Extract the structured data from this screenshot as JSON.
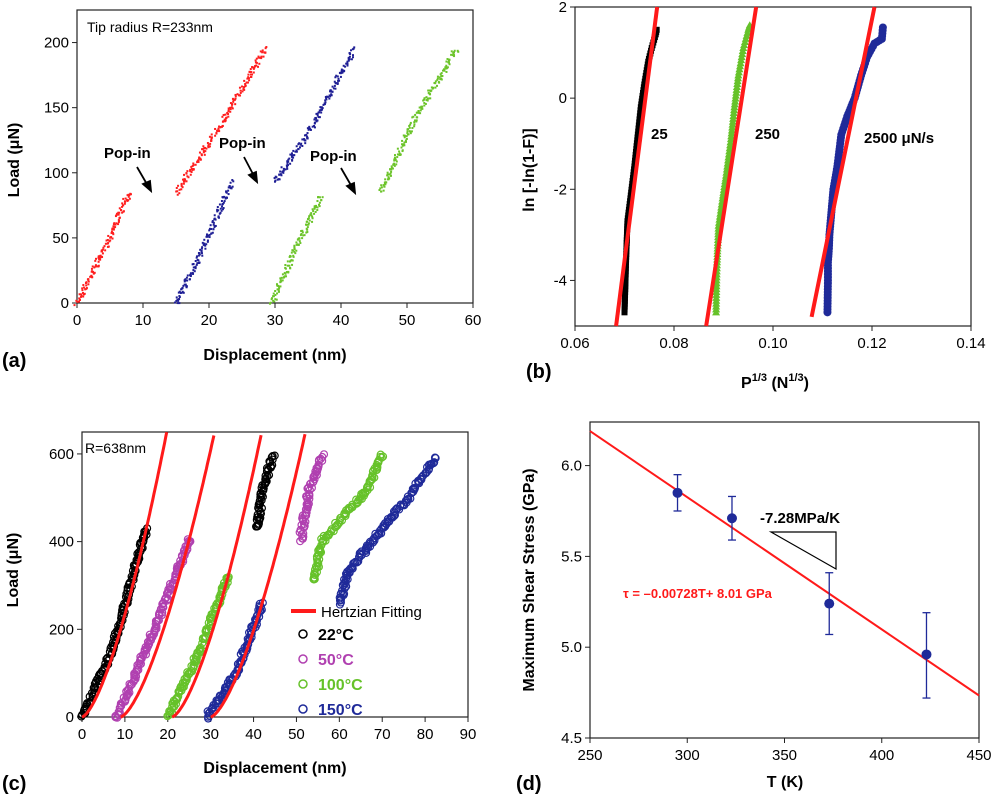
{
  "panel_labels": {
    "a": "(a)",
    "b": "(b)",
    "c": "(c)",
    "d": "(d)"
  },
  "chart_data": [
    {
      "id": "a",
      "type": "scatter",
      "xlabel": "Displacement (nm)",
      "ylabel": "Load (μN)",
      "xlim": [
        0,
        60
      ],
      "ylim": [
        0,
        225
      ],
      "xticks": [
        0,
        10,
        20,
        30,
        40,
        50,
        60
      ],
      "yticks": [
        0,
        50,
        100,
        150,
        200
      ],
      "grid": false,
      "annotations": {
        "tip": "Tip radius R=233nm",
        "popin": [
          "Pop-in",
          "Pop-in",
          "Pop-in"
        ]
      },
      "series": [
        {
          "color": "#ff1f1f",
          "segments": [
            [
              [
                0,
                0
              ],
              [
                4,
                40
              ],
              [
                8,
                85
              ]
            ],
            [
              [
                15,
                85
              ],
              [
                21,
                130
              ],
              [
                28.5,
                195
              ]
            ]
          ]
        },
        {
          "color": "#1f1f95",
          "segments": [
            [
              [
                15,
                0
              ],
              [
                19,
                40
              ],
              [
                23.5,
                93
              ]
            ],
            [
              [
                30,
                93
              ],
              [
                35,
                130
              ],
              [
                42,
                195
              ]
            ]
          ]
        },
        {
          "color": "#6cc42a",
          "segments": [
            [
              [
                29.5,
                0
              ],
              [
                33,
                40
              ],
              [
                37,
                82
              ]
            ],
            [
              [
                46,
                85
              ],
              [
                51,
                140
              ],
              [
                57.5,
                195
              ]
            ]
          ]
        }
      ]
    },
    {
      "id": "b",
      "type": "scatter",
      "xlabel": {
        "base": "P",
        "sup": "1/3",
        "unit": " (N",
        "unit_sup": "1/3",
        "close": ")"
      },
      "ylabel": "ln [-ln(1-F)]",
      "xlim": [
        0.06,
        0.14
      ],
      "ylim": [
        -5,
        2
      ],
      "xticks": [
        "0.06",
        "0.08",
        "0.10",
        "0.12",
        "0.14"
      ],
      "yticks": [
        "2",
        "0",
        "-2",
        "-4"
      ],
      "grid": false,
      "series": [
        {
          "name": "25",
          "marker": "square",
          "color": "#000000",
          "points": [
            [
              0.07,
              -4.7
            ],
            [
              0.0702,
              -4.0
            ],
            [
              0.0703,
              -3.6
            ],
            [
              0.0704,
              -3.3
            ],
            [
              0.0705,
              -3.0
            ],
            [
              0.0706,
              -2.7
            ],
            [
              0.0712,
              -2.2
            ],
            [
              0.072,
              -1.5
            ],
            [
              0.0727,
              -0.8
            ],
            [
              0.0733,
              -0.2
            ],
            [
              0.074,
              0.3
            ],
            [
              0.0748,
              0.8
            ],
            [
              0.0755,
              1.1
            ],
            [
              0.0763,
              1.4
            ],
            [
              0.0765,
              1.5
            ]
          ],
          "fit": [
            [
              0.0683,
              -5
            ],
            [
              0.0766,
              2
            ]
          ]
        },
        {
          "name": "250",
          "marker": "triangle",
          "color": "#66c22a",
          "points": [
            [
              0.0885,
              -4.7
            ],
            [
              0.0886,
              -4.0
            ],
            [
              0.0887,
              -3.6
            ],
            [
              0.0888,
              -3.3
            ],
            [
              0.089,
              -2.8
            ],
            [
              0.0898,
              -2.2
            ],
            [
              0.0905,
              -1.7
            ],
            [
              0.0915,
              -0.9
            ],
            [
              0.0922,
              -0.2
            ],
            [
              0.093,
              0.5
            ],
            [
              0.094,
              1.1
            ],
            [
              0.095,
              1.5
            ],
            [
              0.0953,
              1.6
            ]
          ],
          "fit": [
            [
              0.0865,
              -5
            ],
            [
              0.0966,
              2
            ]
          ]
        },
        {
          "name": "2500 μN/s",
          "marker": "circle",
          "color": "#1f2a99",
          "points": [
            [
              0.111,
              -4.7
            ],
            [
              0.1111,
              -4.0
            ],
            [
              0.1111,
              -3.6
            ],
            [
              0.1113,
              -3.3
            ],
            [
              0.1114,
              -3.0
            ],
            [
              0.1118,
              -2.5
            ],
            [
              0.1122,
              -2.0
            ],
            [
              0.113,
              -1.5
            ],
            [
              0.1138,
              -0.8
            ],
            [
              0.115,
              -0.4
            ],
            [
              0.1165,
              0
            ],
            [
              0.1178,
              0.5
            ],
            [
              0.119,
              0.9
            ],
            [
              0.1205,
              1.2
            ],
            [
              0.122,
              1.3
            ],
            [
              0.1222,
              1.55
            ]
          ],
          "fit": [
            [
              0.1078,
              -4.8
            ],
            [
              0.1205,
              2
            ]
          ]
        }
      ],
      "fit_color": "#ff1a1a"
    },
    {
      "id": "c",
      "type": "scatter",
      "xlabel": "Displacement (nm)",
      "ylabel": "Load (μN)",
      "xlim": [
        0,
        90
      ],
      "ylim": [
        0,
        650
      ],
      "xticks": [
        0,
        10,
        20,
        30,
        40,
        50,
        60,
        70,
        80,
        90
      ],
      "yticks": [
        0,
        200,
        400,
        600
      ],
      "grid": false,
      "annotation": "R=638nm",
      "fit": {
        "name": "Hertzian Fitting",
        "color": "#ff1a1a",
        "exponent": 1.5
      },
      "series": [
        {
          "name": "22°C",
          "color": "#000000",
          "fit_h0": 0,
          "fit_k": 7.4,
          "segments": [
            [
              [
                0,
                0
              ],
              [
                7,
                150
              ],
              [
                15,
                430
              ]
            ],
            [
              [
                41,
                430
              ],
              [
                42,
                520
              ],
              [
                44.5,
                595
              ]
            ]
          ]
        },
        {
          "name": "50°C",
          "color": "#b040b0",
          "fit_h0": 9,
          "fit_k": 6.33,
          "segments": [
            [
              [
                8,
                0
              ],
              [
                17,
                200
              ],
              [
                25,
                405
              ]
            ],
            [
              [
                51,
                405
              ],
              [
                53,
                520
              ],
              [
                56,
                595
              ]
            ]
          ]
        },
        {
          "name": "100°C",
          "color": "#66c22a",
          "fit_h0": 21,
          "fit_k": 6.8,
          "segments": [
            [
              [
                20,
                0
              ],
              [
                27,
                140
              ],
              [
                34,
                320
              ]
            ],
            [
              [
                54,
                310
              ],
              [
                56,
                400
              ],
              [
                62,
                470
              ],
              [
                66,
                510
              ],
              [
                70,
                595
              ]
            ]
          ]
        },
        {
          "name": "150°C",
          "color": "#1f2a99",
          "fit_h0": 30,
          "fit_k": 6.25,
          "segments": [
            [
              [
                29,
                0
              ],
              [
                36,
                100
              ],
              [
                42,
                260
              ]
            ],
            [
              [
                60,
                260
              ],
              [
                62,
                330
              ],
              [
                70,
                430
              ],
              [
                76,
                500
              ],
              [
                82.5,
                590
              ]
            ]
          ]
        }
      ]
    },
    {
      "id": "d",
      "type": "scatter",
      "xlabel": "T (K)",
      "ylabel": "Maximum Shear Stress (GPa)",
      "xlim": [
        250,
        450
      ],
      "ylim": [
        4.5,
        6.24
      ],
      "xticks": [
        "250",
        "300",
        "350",
        "400",
        "450"
      ],
      "yticks": [
        "4.5",
        "5.0",
        "5.5",
        "6.0"
      ],
      "grid": false,
      "points": [
        {
          "x": 295,
          "y": 5.85,
          "lo": 5.75,
          "hi": 5.95
        },
        {
          "x": 323,
          "y": 5.71,
          "lo": 5.59,
          "hi": 5.83
        },
        {
          "x": 373,
          "y": 5.24,
          "lo": 5.07,
          "hi": 5.41
        },
        {
          "x": 423,
          "y": 4.96,
          "lo": 4.72,
          "hi": 5.19
        }
      ],
      "point_color": "#1f2a99",
      "fit": {
        "slope": -0.00728,
        "intercept": 8.01,
        "color": "#ff1a1a",
        "label": "τ = –0.00728T+ 8.01 GPa"
      },
      "slope_label": "-7.28MPa/K"
    }
  ]
}
